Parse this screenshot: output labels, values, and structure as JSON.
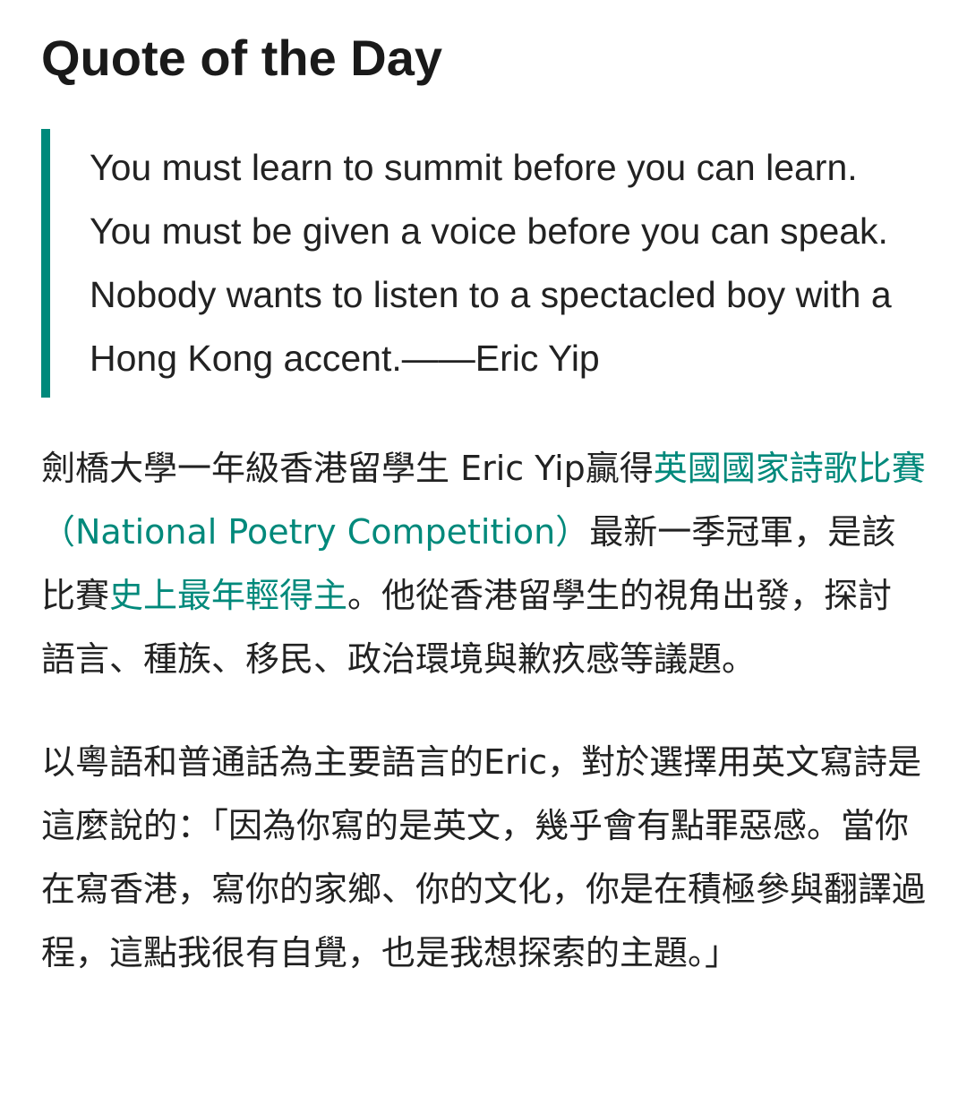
{
  "section": {
    "title": "Quote of the Day"
  },
  "quote": {
    "text": "You must learn to summit before you can learn. You must be given a voice before you can speak. Nobody wants to listen to a spectacled boy with a Hong Kong accent.——Eric Yip"
  },
  "paragraph1": {
    "part1": "劍橋大學一年級香港留學生 Eric Yip贏得",
    "link1": "英國國家詩歌比賽（National Poetry Competition）",
    "part2": "最新一季冠軍，是該比賽",
    "link2": "史上最年輕得主",
    "part3": "。他從香港留學生的視角出發，探討語言、種族、移民、政治環境與歉疚感等議題。"
  },
  "paragraph2": {
    "text": "以粵語和普通話為主要語言的Eric，對於選擇用英文寫詩是這麼說的：「因為你寫的是英文，幾乎會有點罪惡感。當你在寫香港，寫你的家鄉、你的文化，你是在積極參與翻譯過程，這點我很有自覺，也是我想探索的主題。」"
  },
  "colors": {
    "accent": "#00897b",
    "text": "#222222"
  }
}
